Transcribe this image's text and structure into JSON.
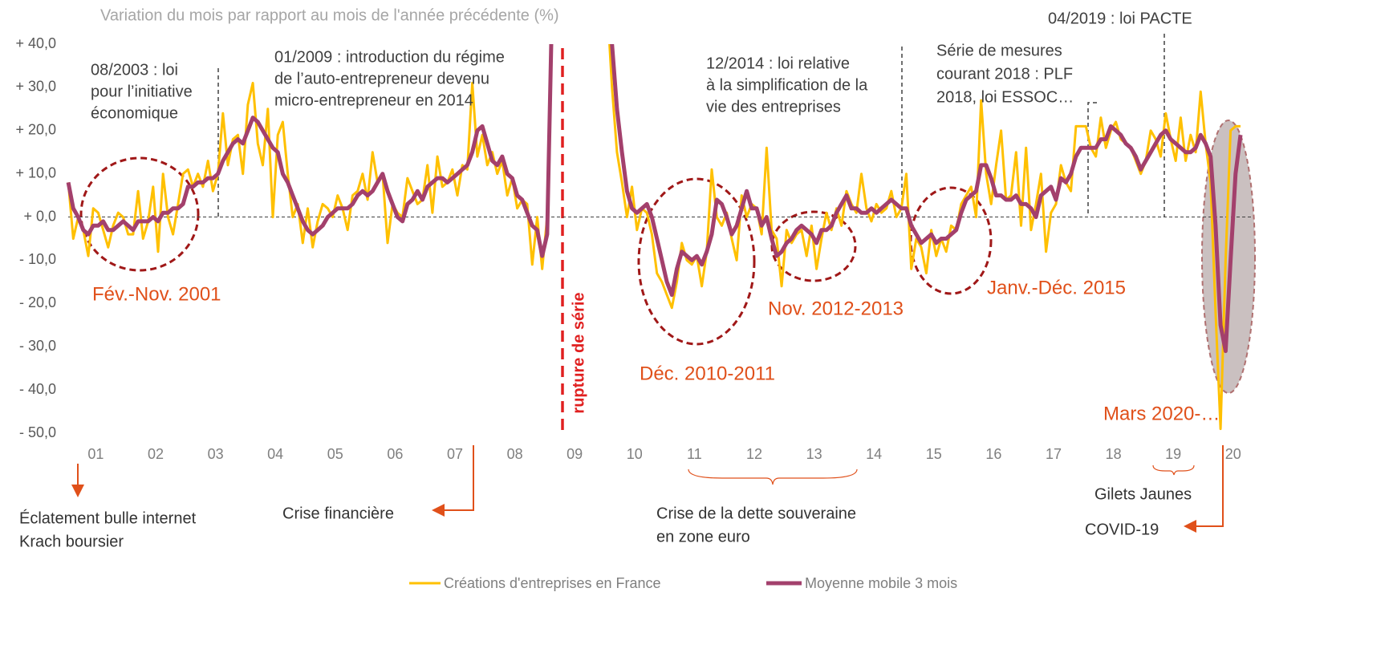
{
  "chart_data": {
    "type": "line",
    "y_axis_label": "Variation du mois par rapport au mois de l'année précédente (%)",
    "categories": [
      null,
      null,
      null,
      null,
      null,
      null,
      "01",
      null,
      null,
      null,
      null,
      null,
      null,
      null,
      null,
      null,
      null,
      null,
      "02",
      null,
      null,
      null,
      null,
      null,
      null,
      null,
      null,
      null,
      null,
      null,
      "03",
      null,
      null,
      null,
      null,
      null,
      null,
      null,
      null,
      null,
      null,
      null,
      "04",
      null,
      null,
      null,
      null,
      null,
      null,
      null,
      null,
      null,
      null,
      null,
      "05",
      null,
      null,
      null,
      null,
      null,
      null,
      null,
      null,
      null,
      null,
      null,
      "06",
      null,
      null,
      null,
      null,
      null,
      null,
      null,
      null,
      null,
      null,
      null,
      "07",
      null,
      null,
      null,
      null,
      null,
      null,
      null,
      null,
      null,
      null,
      null,
      "08",
      null,
      null,
      null,
      null,
      null,
      null,
      null,
      null,
      null,
      null,
      null,
      "09",
      null,
      null,
      null,
      null,
      null,
      null,
      null,
      null,
      null,
      null,
      null,
      "10",
      null,
      null,
      null,
      null,
      null,
      null,
      null,
      null,
      null,
      null,
      null,
      "11",
      null,
      null,
      null,
      null,
      null,
      null,
      null,
      null,
      null,
      null,
      null,
      "12",
      null,
      null,
      null,
      null,
      null,
      null,
      null,
      null,
      null,
      null,
      null,
      "13",
      null,
      null,
      null,
      null,
      null,
      null,
      null,
      null,
      null,
      null,
      null,
      "14",
      null,
      null,
      null,
      null,
      null,
      null,
      null,
      null,
      null,
      null,
      null,
      "15",
      null,
      null,
      null,
      null,
      null,
      null,
      null,
      null,
      null,
      null,
      null,
      "16",
      null,
      null,
      null,
      null,
      null,
      null,
      null,
      null,
      null,
      null,
      null,
      "17",
      null,
      null,
      null,
      null,
      null,
      null,
      null,
      null,
      null,
      null,
      null,
      "18",
      null,
      null,
      null,
      null,
      null,
      null,
      null,
      null,
      null,
      null,
      null,
      "19",
      null,
      null,
      null,
      null,
      null,
      null,
      null,
      null,
      null,
      null,
      null,
      "20",
      null
    ],
    "series": [
      {
        "name": "Créations d'entreprises en France",
        "color": "#ffc000",
        "width": 3,
        "values": [
          8,
          -5,
          0,
          -3,
          -9,
          2,
          1,
          -3,
          -7,
          -2,
          1,
          0,
          -4,
          -4,
          6,
          -5,
          -1,
          7,
          -8,
          10,
          0,
          -4,
          3,
          10,
          11,
          7,
          10,
          7,
          13,
          6,
          10,
          24,
          12,
          18,
          19,
          10,
          26,
          31,
          17,
          12,
          25,
          0,
          19,
          22,
          10,
          0,
          3,
          -6,
          2,
          -7,
          -1,
          3,
          2,
          0,
          5,
          2,
          -3,
          5,
          6,
          10,
          4,
          15,
          8,
          10,
          -6,
          3,
          1,
          0,
          9,
          6,
          3,
          4,
          12,
          1,
          14,
          7,
          8,
          11,
          5,
          12,
          11,
          31,
          14,
          19,
          12,
          15,
          10,
          13,
          5,
          9,
          2,
          4,
          3,
          -11,
          0,
          -12,
          0,
          50,
          null,
          null,
          null,
          null,
          null,
          null,
          null,
          null,
          null,
          null,
          50,
          30,
          15,
          8,
          0,
          7,
          -3,
          2,
          1,
          -4,
          -13,
          -15,
          -18,
          -21,
          -15,
          -6,
          -10,
          -11,
          -9,
          -16,
          -8,
          11,
          0,
          -2,
          1,
          -5,
          -10,
          5,
          0,
          3,
          2,
          -4,
          16,
          -3,
          -5,
          -16,
          -3,
          -6,
          -4,
          -3,
          -9,
          -2,
          -12,
          -5,
          1,
          -3,
          2,
          -2,
          6,
          3,
          1,
          10,
          2,
          -1,
          3,
          1,
          2,
          6,
          0,
          2,
          10,
          -12,
          -5,
          -7,
          -13,
          -3,
          -9,
          -5,
          -8,
          -2,
          -3,
          3,
          5,
          7,
          0,
          27,
          10,
          3,
          12,
          20,
          4,
          5,
          15,
          -2,
          16,
          -3,
          3,
          10,
          -8,
          1,
          3,
          12,
          8,
          6,
          21,
          21,
          21,
          16,
          14,
          23,
          16,
          20,
          22,
          18,
          17,
          16,
          13,
          10,
          13,
          20,
          18,
          14,
          24,
          18,
          13,
          23,
          13,
          19,
          15,
          29,
          17,
          8,
          -22,
          -49,
          -10,
          20,
          21,
          21
        ]
      },
      {
        "name": "Moyenne mobile 3 mois",
        "color": "#a3406c",
        "width": 5,
        "values": [
          8,
          2,
          0,
          -3,
          -4,
          -2,
          -2,
          -1,
          -3,
          -3,
          -2,
          -1,
          -2,
          -3,
          -1,
          -1,
          -1,
          0,
          -1,
          1,
          1,
          2,
          2,
          3,
          7,
          7,
          8,
          8,
          9,
          9,
          10,
          13,
          15,
          17,
          18,
          17,
          20,
          23,
          22,
          20,
          18,
          16,
          15,
          10,
          8,
          5,
          2,
          -1,
          -3,
          -4,
          -3,
          -2,
          0,
          1,
          2,
          2,
          2,
          3,
          5,
          6,
          5,
          6,
          8,
          10,
          6,
          3,
          0,
          -1,
          3,
          4,
          6,
          4,
          7,
          8,
          9,
          9,
          8,
          9,
          10,
          11,
          12,
          15,
          20,
          21,
          17,
          13,
          12,
          14,
          10,
          9,
          5,
          4,
          1,
          -2,
          -3,
          -9,
          -4,
          50,
          null,
          null,
          null,
          null,
          null,
          null,
          null,
          null,
          null,
          null,
          50,
          40,
          25,
          15,
          6,
          2,
          1,
          2,
          3,
          0,
          -5,
          -10,
          -15,
          -18,
          -12,
          -8,
          -9,
          -10,
          -9,
          -11,
          -8,
          -4,
          4,
          3,
          0,
          -4,
          -2,
          2,
          6,
          2,
          2,
          -2,
          0,
          -5,
          -9,
          -8,
          -6,
          -5,
          -3,
          -2,
          -3,
          -4,
          -6,
          -3,
          -3,
          -2,
          1,
          3,
          5,
          2,
          2,
          1,
          1,
          2,
          1,
          2,
          3,
          4,
          3,
          2,
          2,
          -2,
          -4,
          -6,
          -5,
          -4,
          -6,
          -5,
          -5,
          -4,
          -3,
          1,
          4,
          5,
          6,
          12,
          12,
          9,
          5,
          5,
          4,
          4,
          5,
          3,
          3,
          2,
          0,
          5,
          6,
          7,
          4,
          9,
          8,
          10,
          14,
          16,
          16,
          16,
          16,
          18,
          18,
          21,
          20,
          19,
          17,
          16,
          14,
          11,
          13,
          15,
          17,
          19,
          20,
          18,
          17,
          16,
          15,
          15,
          16,
          19,
          17,
          14,
          -2,
          -25,
          -31,
          -10,
          10,
          19
        ]
      }
    ],
    "ylim": [
      -50,
      40
    ],
    "yticks": [
      {
        "value": 40,
        "label": "+ 40,0"
      },
      {
        "value": 30,
        "label": "+ 30,0"
      },
      {
        "value": 20,
        "label": "+ 20,0"
      },
      {
        "value": 10,
        "label": "+ 10,0"
      },
      {
        "value": 0,
        "label": "+ 0,0"
      },
      {
        "value": -10,
        "label": "- 10,0"
      },
      {
        "value": -20,
        "label": "- 20,0"
      },
      {
        "value": -30,
        "label": "- 30,0"
      },
      {
        "value": -40,
        "label": "- 40,0"
      },
      {
        "value": -50,
        "label": "- 50,0"
      }
    ],
    "zero_line": true,
    "legend": "bottom",
    "annotations": [
      [
        "08/2003 : loi",
        "pour l’initiative",
        "économique"
      ],
      [
        "01/2009 : introduction du régime",
        "de l’auto-entrepreneur devenu",
        "micro-entrepreneur en 2014"
      ],
      [
        "12/2014 : loi relative",
        "à la simplification de la",
        "vie des entreprises"
      ],
      [
        "Série de mesures",
        "courant 2018 : PLF",
        "2018, loi ESSOC…"
      ],
      [
        "04/2019 : loi PACTE"
      ],
      [
        "Fév.-Nov. 2001"
      ],
      [
        "Déc. 2010-2011"
      ],
      [
        "Nov. 2012-2013"
      ],
      [
        "Janv.-Déc. 2015"
      ],
      [
        "Mars 2020-…"
      ],
      [
        "rupture de série"
      ],
      [
        "Éclatement bulle internet",
        "Krach boursier"
      ],
      [
        "Crise financière"
      ],
      [
        "Crise de la dette souveraine",
        "en zone euro"
      ],
      [
        "Gilets Jaunes"
      ],
      [
        "COVID-19"
      ]
    ]
  }
}
